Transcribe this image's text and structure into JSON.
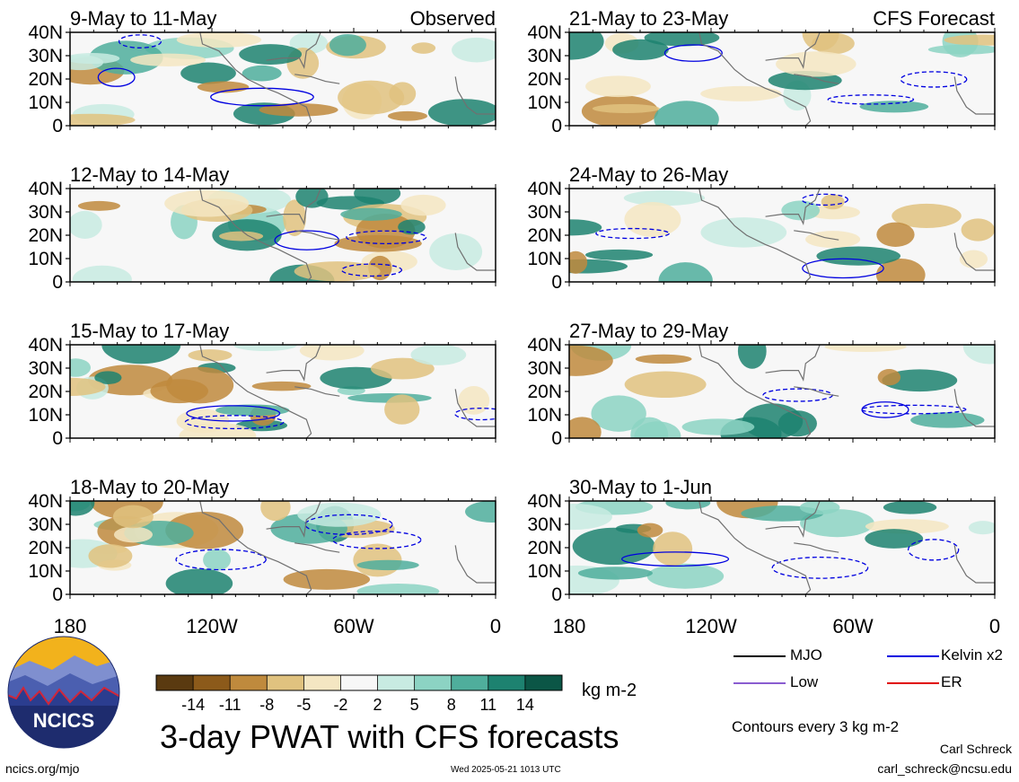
{
  "chart_data": {
    "type": "heatmap",
    "title": "3-day PWAT with CFS forecasts",
    "variable": "3-day precipitable water anomaly",
    "units": "kg m-2",
    "contour_note": "Contours every 3 kg m-2",
    "x_ticks": [
      "180",
      "120W",
      "60W",
      "0"
    ],
    "x_tick_values": [
      -180,
      -120,
      -60,
      0
    ],
    "xlim": [
      -180,
      0
    ],
    "y_ticks": [
      "40N",
      "30N",
      "20N",
      "10N",
      "0"
    ],
    "y_tick_values": [
      40,
      30,
      20,
      10,
      0
    ],
    "ylim": [
      0,
      40
    ],
    "columns": [
      {
        "label": "Observed",
        "panels": [
          "9-May to 11-May",
          "12-May to 14-May",
          "15-May to 17-May",
          "18-May to 20-May"
        ]
      },
      {
        "label": "CFS Forecast",
        "panels": [
          "21-May to 23-May",
          "24-May to 26-May",
          "27-May to 29-May",
          "30-May to 1-Jun"
        ]
      }
    ],
    "colorbar": {
      "levels": [
        "-14",
        "-11",
        "-8",
        "-5",
        "-2",
        "2",
        "5",
        "8",
        "11",
        "14"
      ],
      "colors": [
        "#5a3a10",
        "#8c5a1a",
        "#bf8a3d",
        "#e0c27f",
        "#f4e6c2",
        "#f7f7f7",
        "#c8ebe2",
        "#8cd3c3",
        "#4fae9c",
        "#1d8270",
        "#0b5646"
      ]
    },
    "legend": [
      {
        "label": "MJO",
        "color": "#000000",
        "style": "solid"
      },
      {
        "label": "Kelvin x2",
        "color": "#0000e0",
        "style": "solid"
      },
      {
        "label": "Low",
        "color": "#8a5cd0",
        "style": "solid"
      },
      {
        "label": "ER",
        "color": "#e00000",
        "style": "solid"
      }
    ]
  },
  "footer": {
    "logo_text": "NCICS",
    "site": "ncics.org/mjo",
    "timestamp": "Wed 2025-05-21 1013 UTC",
    "author": "Carl Schreck",
    "email": "carl_schreck@ncsu.edu"
  }
}
